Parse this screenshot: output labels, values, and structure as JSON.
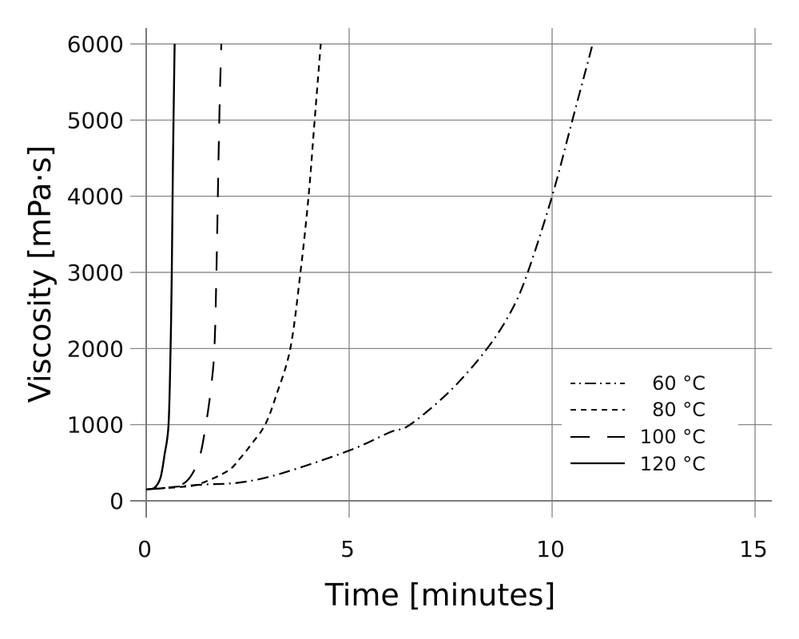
{
  "chart_data": {
    "type": "line",
    "title": "",
    "xlabel": "Time [minutes]",
    "ylabel": "Viscosity [mPa·s]",
    "xlim": [
      0,
      15
    ],
    "ylim": [
      0,
      6000
    ],
    "xticks": [
      0,
      5,
      10,
      15
    ],
    "yticks": [
      0,
      1000,
      2000,
      3000,
      4000,
      5000,
      6000
    ],
    "xtick_labels": [
      "0",
      "5",
      "10",
      "15"
    ],
    "ytick_labels": [
      "0",
      "1000",
      "2000",
      "3000",
      "4000",
      "5000",
      "6000"
    ],
    "grid": true,
    "legend_position": "lower right",
    "series": [
      {
        "name": "60 °C",
        "linestyle": "dash-dot",
        "color": "#000000",
        "x": [
          0,
          1.3,
          2.3,
          3.3,
          5.0,
          6.0,
          6.5,
          7.5,
          8.4,
          9.0,
          9.4,
          10.0,
          10.5,
          11.0
        ],
        "y": [
          150,
          210,
          240,
          355,
          660,
          900,
          1000,
          1450,
          2000,
          2500,
          3000,
          4000,
          5000,
          6000
        ]
      },
      {
        "name": "80 °C",
        "linestyle": "dashed",
        "color": "#000000",
        "x": [
          0,
          0.8,
          1.3,
          2.0,
          2.3,
          2.6,
          2.93,
          3.2,
          3.55,
          3.8,
          4.0,
          4.15,
          4.3
        ],
        "y": [
          150,
          180,
          220,
          390,
          550,
          750,
          1000,
          1380,
          2000,
          3000,
          4000,
          5000,
          6000
        ]
      },
      {
        "name": "100 °C",
        "linestyle": "long-dashed",
        "color": "#000000",
        "x": [
          0,
          0.6,
          1.0,
          1.3,
          1.47,
          1.6,
          1.68,
          1.73,
          1.8,
          1.85
        ],
        "y": [
          150,
          180,
          260,
          550,
          1000,
          1500,
          2000,
          3000,
          5000,
          6000
        ]
      },
      {
        "name": "120 °C",
        "linestyle": "solid",
        "color": "#000000",
        "x": [
          0,
          0.2,
          0.35,
          0.45,
          0.55,
          0.6,
          0.63,
          0.66,
          0.7
        ],
        "y": [
          150,
          170,
          300,
          600,
          1000,
          2000,
          3000,
          4500,
          6000
        ]
      }
    ]
  },
  "legend": {
    "items": [
      {
        "label": "60 °C",
        "style": "dash-dot"
      },
      {
        "label": "80 °C",
        "style": "dashed"
      },
      {
        "label": "100 °C",
        "style": "long-dashed"
      },
      {
        "label": "120 °C",
        "style": "solid"
      }
    ]
  },
  "axes": {
    "x_title": "Time [minutes]",
    "y_title": "Viscosity [mPa·s]"
  }
}
